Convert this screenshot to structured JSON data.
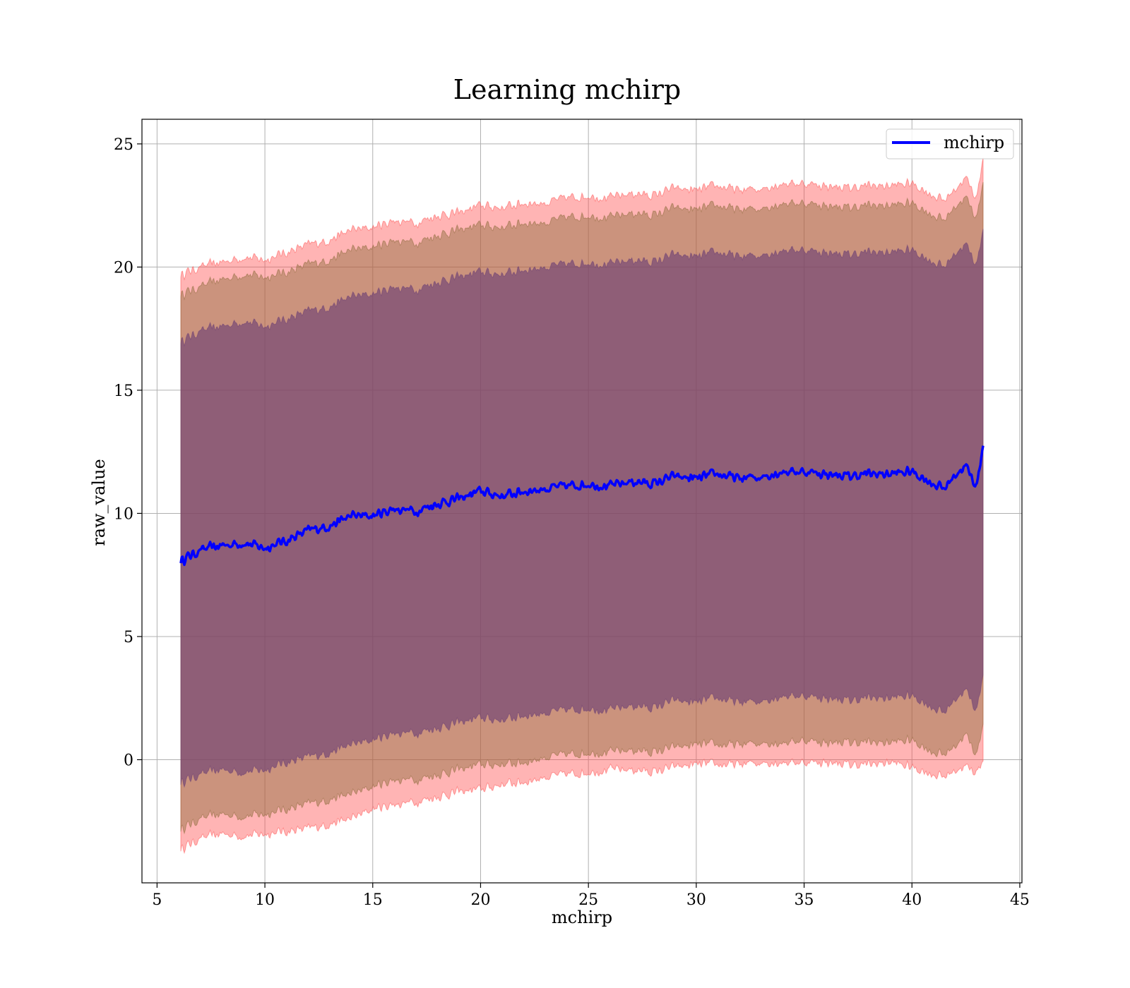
{
  "chart_data": {
    "type": "area",
    "title": "Learning mchirp",
    "xlabel": "mchirp",
    "ylabel": "raw_value",
    "xlim": [
      4.3,
      45.1
    ],
    "ylim": [
      -5.0,
      26.0
    ],
    "x_ticks": [
      5,
      10,
      15,
      20,
      25,
      30,
      35,
      40,
      45
    ],
    "y_ticks": [
      0,
      5,
      10,
      15,
      20,
      25
    ],
    "grid": true,
    "legend": {
      "position": "top-right",
      "entries": [
        "mchirp"
      ]
    },
    "colors": {
      "line": "#0000ff",
      "band": "#ff4d4d",
      "inner_band": "#6a3d75",
      "grid": "#b0b0b0"
    },
    "x_range": [
      6.1,
      43.3
    ],
    "series": [
      {
        "name": "mchirp",
        "role": "mean",
        "x": [
          6.1,
          7,
          8,
          9,
          10,
          11,
          12,
          13,
          14,
          15,
          16,
          17,
          18,
          19,
          20,
          21,
          22,
          23,
          24,
          25,
          26,
          27,
          28,
          29,
          30,
          31,
          32,
          33,
          34,
          35,
          36,
          37,
          38,
          39,
          40,
          41,
          41.5,
          42,
          42.5,
          43,
          43.3
        ],
        "y": [
          8.1,
          8.5,
          8.7,
          8.8,
          8.6,
          8.9,
          9.3,
          9.5,
          9.9,
          9.9,
          10.2,
          10.1,
          10.4,
          10.6,
          10.9,
          10.7,
          10.9,
          11.0,
          11.1,
          11.2,
          11.1,
          11.3,
          11.2,
          11.5,
          11.4,
          11.6,
          11.4,
          11.5,
          11.7,
          11.7,
          11.6,
          11.5,
          11.6,
          11.6,
          11.7,
          11.2,
          11.0,
          11.6,
          11.9,
          11.1,
          12.8
        ]
      }
    ],
    "bands": [
      {
        "level": "outer",
        "lower": [
          -3.6,
          -3.2,
          -3.0,
          -3.1,
          -3.0,
          -2.9,
          -2.8,
          -2.6,
          -2.4,
          -2.0,
          -1.8,
          -1.7,
          -1.5,
          -1.3,
          -1.2,
          -1.0,
          -0.9,
          -0.7,
          -0.6,
          -0.5,
          -0.4,
          -0.4,
          -0.5,
          -0.3,
          -0.2,
          -0.2,
          -0.2,
          -0.1,
          -0.1,
          -0.1,
          -0.1,
          -0.2,
          -0.2,
          -0.1,
          -0.3,
          -0.6,
          -0.7,
          -0.4,
          -0.3,
          -0.5,
          0.0
        ],
        "upper": [
          19.7,
          20.0,
          20.2,
          20.4,
          20.3,
          20.6,
          20.9,
          21.1,
          21.5,
          21.6,
          21.9,
          21.8,
          22.1,
          22.2,
          22.5,
          22.4,
          22.6,
          22.6,
          22.8,
          22.9,
          22.8,
          23.0,
          22.9,
          23.2,
          23.1,
          23.3,
          23.1,
          23.2,
          23.4,
          23.4,
          23.3,
          23.2,
          23.3,
          23.3,
          23.4,
          22.9,
          22.7,
          23.2,
          23.6,
          22.8,
          24.5
        ]
      },
      {
        "level": "middle",
        "lower": [
          -2.8,
          -2.4,
          -2.2,
          -2.3,
          -2.2,
          -2.0,
          -1.8,
          -1.6,
          -1.4,
          -1.1,
          -0.8,
          -0.8,
          -0.6,
          -0.4,
          -0.2,
          -0.2,
          -0.1,
          0.1,
          0.2,
          0.3,
          0.3,
          0.4,
          0.3,
          0.5,
          0.6,
          0.6,
          0.6,
          0.7,
          0.7,
          0.8,
          0.7,
          0.7,
          0.7,
          0.7,
          0.8,
          0.3,
          0.2,
          0.6,
          1.0,
          0.2,
          1.5
        ],
        "upper": [
          18.9,
          19.2,
          19.5,
          19.7,
          19.6,
          19.8,
          20.1,
          20.3,
          20.7,
          20.8,
          21.1,
          21.0,
          21.3,
          21.5,
          21.7,
          21.6,
          21.8,
          21.8,
          22.0,
          22.1,
          22.0,
          22.2,
          22.1,
          22.4,
          22.3,
          22.5,
          22.3,
          22.4,
          22.6,
          22.6,
          22.5,
          22.4,
          22.5,
          22.5,
          22.6,
          22.1,
          21.9,
          22.5,
          22.8,
          22.0,
          23.5
        ]
      },
      {
        "level": "inner",
        "lower": [
          -0.9,
          -0.6,
          -0.4,
          -0.5,
          -0.4,
          -0.1,
          0.1,
          0.3,
          0.6,
          0.8,
          1.1,
          1.1,
          1.3,
          1.5,
          1.7,
          1.6,
          1.8,
          1.9,
          2.0,
          2.1,
          2.0,
          2.2,
          2.1,
          2.4,
          2.3,
          2.5,
          2.3,
          2.4,
          2.6,
          2.6,
          2.5,
          2.4,
          2.5,
          2.5,
          2.6,
          2.1,
          1.9,
          2.5,
          2.8,
          2.0,
          3.5
        ],
        "upper": [
          17.0,
          17.4,
          17.6,
          17.8,
          17.6,
          17.9,
          18.2,
          18.4,
          18.8,
          18.9,
          19.2,
          19.1,
          19.4,
          19.6,
          19.8,
          19.7,
          19.9,
          20.0,
          20.1,
          20.2,
          20.1,
          20.3,
          20.2,
          20.5,
          20.4,
          20.6,
          20.4,
          20.5,
          20.7,
          20.7,
          20.6,
          20.5,
          20.6,
          20.6,
          20.7,
          20.2,
          20.0,
          20.6,
          20.9,
          20.1,
          21.6
        ]
      }
    ]
  }
}
